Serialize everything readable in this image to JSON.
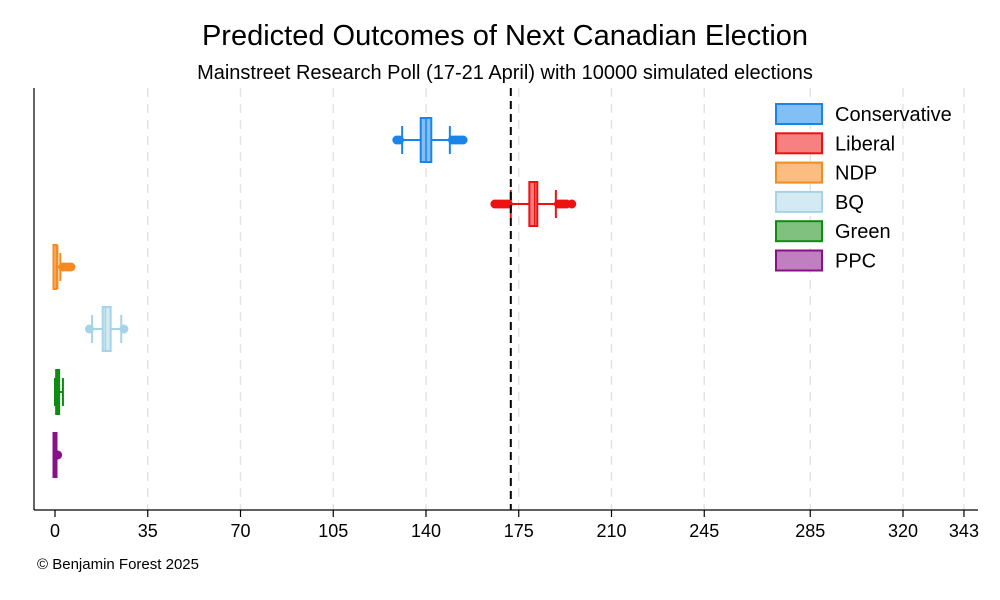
{
  "chart_data": {
    "type": "box",
    "title": "Predicted Outcomes of Next Canadian Election",
    "subtitle": "Mainstreet Research Poll (17-21 April) with 10000 simulated elections",
    "xlabel": "",
    "ylabel": "",
    "xlim": [
      -3,
      348
    ],
    "x_ticks": [
      0,
      35,
      70,
      105,
      140,
      175,
      210,
      245,
      285,
      320,
      343
    ],
    "reference_line": 172,
    "grid": true,
    "legend_position": "top-right",
    "series": [
      {
        "name": "Conservative",
        "color": "#1a85e8",
        "fill": "#82bff5",
        "min": 129,
        "whisker_low": 131,
        "q1": 138,
        "median": 140,
        "q3": 142,
        "whisker_high": 149,
        "max": 154,
        "outliers_low": [
          129,
          130
        ],
        "outliers_high": [
          150,
          151,
          152,
          153,
          154
        ]
      },
      {
        "name": "Liberal",
        "color": "#ee1111",
        "fill": "#f78080",
        "min": 166,
        "whisker_low": 172,
        "q1": 179,
        "median": 181,
        "q3": 182,
        "whisker_high": 189,
        "max": 195,
        "outliers_low": [
          166,
          167,
          168,
          169,
          170,
          171
        ],
        "outliers_high": [
          190,
          191,
          192,
          193,
          195
        ]
      },
      {
        "name": "NDP",
        "color": "#f58a1f",
        "fill": "#fbbd80",
        "min": 0,
        "whisker_low": 0,
        "q1": 0,
        "median": 1,
        "q3": 1,
        "whisker_high": 2,
        "max": 6,
        "outliers_low": [],
        "outliers_high": [
          3,
          4,
          5,
          6
        ]
      },
      {
        "name": "BQ",
        "color": "#a6d3e8",
        "fill": "#d4eaf3",
        "min": 13,
        "whisker_low": 14,
        "q1": 18,
        "median": 19,
        "q3": 21,
        "whisker_high": 25,
        "max": 26,
        "outliers_low": [
          13
        ],
        "outliers_high": [
          26
        ]
      },
      {
        "name": "Green",
        "color": "#118a11",
        "fill": "#80c180",
        "min": 0,
        "whisker_low": 0,
        "q1": 1,
        "median": 1,
        "q3": 2,
        "whisker_high": 3,
        "max": 3,
        "outliers_low": [],
        "outliers_high": []
      },
      {
        "name": "PPC",
        "color": "#881188",
        "fill": "#c080c0",
        "min": 0,
        "whisker_low": 0,
        "q1": 0,
        "median": 0,
        "q3": 0,
        "whisker_high": 0,
        "max": 1,
        "outliers_low": [],
        "outliers_high": [
          1
        ]
      }
    ]
  },
  "credit": "© Benjamin Forest 2025"
}
